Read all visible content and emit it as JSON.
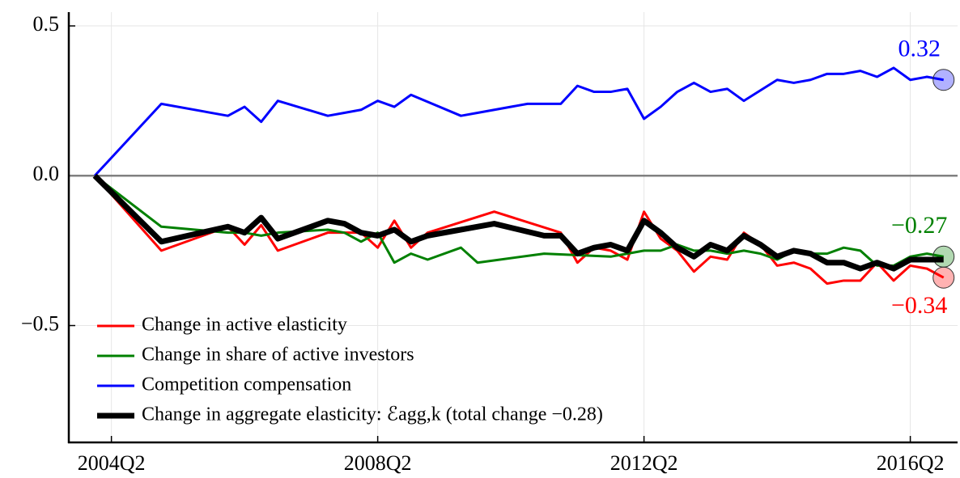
{
  "chart_data": {
    "type": "line",
    "xlim": [
      2003.61,
      2016.96
    ],
    "ylim": [
      -0.89,
      0.546
    ],
    "xticks": [
      {
        "value": 2004.25,
        "label": "2004Q2"
      },
      {
        "value": 2008.25,
        "label": "2008Q2"
      },
      {
        "value": 2012.25,
        "label": "2012Q2"
      },
      {
        "value": 2016.25,
        "label": "2016Q2"
      }
    ],
    "yticks": [
      {
        "value": -0.5,
        "label": "−0.5"
      },
      {
        "value": 0,
        "label": "0.0"
      },
      0.5
    ],
    "grid": true,
    "hline": 0,
    "hline_color": "#808080",
    "legend": "bottom left",
    "series": [
      {
        "name": "Change in active elasticity",
        "color": "#ff0000",
        "width": 3,
        "end_label": "−0.34",
        "end_label_position": "below",
        "x": [
          2004,
          2005,
          2006,
          2006.25,
          2006.5,
          2006.75,
          2007.5,
          2008,
          2008.25,
          2008.5,
          2008.75,
          2009,
          2010,
          2011,
          2011.25,
          2011.5,
          2011.75,
          2012,
          2012.25,
          2012.5,
          2012.75,
          2013,
          2013.25,
          2013.5,
          2013.75,
          2014,
          2014.25,
          2014.5,
          2014.75,
          2015,
          2015.25,
          2015.5,
          2015.75,
          2016,
          2016.25,
          2016.5,
          2016.75
        ],
        "values": [
          0,
          -0.25,
          -0.17,
          -0.23,
          -0.165,
          -0.25,
          -0.19,
          -0.19,
          -0.24,
          -0.15,
          -0.24,
          -0.19,
          -0.12,
          -0.19,
          -0.29,
          -0.24,
          -0.25,
          -0.28,
          -0.12,
          -0.21,
          -0.25,
          -0.32,
          -0.27,
          -0.28,
          -0.19,
          -0.23,
          -0.3,
          -0.29,
          -0.31,
          -0.36,
          -0.35,
          -0.35,
          -0.29,
          -0.35,
          -0.3,
          -0.31,
          -0.34
        ]
      },
      {
        "name": "Change in share of active investors",
        "color": "#008000",
        "width": 3,
        "end_label": "−0.27",
        "end_label_position": "above",
        "x": [
          2004,
          2005,
          2006,
          2006.25,
          2006.5,
          2006.75,
          2007.5,
          2007.75,
          2008,
          2008.25,
          2008.5,
          2008.75,
          2009,
          2009.5,
          2009.75,
          2010.75,
          2011.75,
          2012,
          2012.25,
          2012.5,
          2012.75,
          2013,
          2013.25,
          2013.5,
          2013.75,
          2014,
          2014.25,
          2014.5,
          2014.75,
          2015,
          2015.25,
          2015.5,
          2015.75,
          2016,
          2016.25,
          2016.5,
          2016.75
        ],
        "values": [
          0,
          -0.17,
          -0.19,
          -0.19,
          -0.2,
          -0.19,
          -0.18,
          -0.19,
          -0.22,
          -0.19,
          -0.29,
          -0.26,
          -0.28,
          -0.24,
          -0.29,
          -0.26,
          -0.27,
          -0.26,
          -0.25,
          -0.25,
          -0.23,
          -0.25,
          -0.25,
          -0.26,
          -0.25,
          -0.26,
          -0.28,
          -0.25,
          -0.26,
          -0.26,
          -0.24,
          -0.25,
          -0.3,
          -0.3,
          -0.27,
          -0.26,
          -0.27
        ]
      },
      {
        "name": "Competition compensation",
        "color": "#0000ff",
        "width": 3,
        "end_label": "0.32",
        "end_label_position": "above",
        "x": [
          2004,
          2005,
          2006,
          2006.25,
          2006.5,
          2006.75,
          2007.5,
          2007.75,
          2008,
          2008.25,
          2008.5,
          2008.75,
          2009.5,
          2009.75,
          2010.5,
          2011,
          2011.25,
          2011.5,
          2011.75,
          2012,
          2012.25,
          2012.5,
          2012.75,
          2013,
          2013.25,
          2013.5,
          2013.75,
          2014.25,
          2014.5,
          2014.75,
          2015,
          2015.25,
          2015.5,
          2015.75,
          2016,
          2016.25,
          2016.5,
          2016.75
        ],
        "values": [
          0,
          0.24,
          0.2,
          0.23,
          0.18,
          0.25,
          0.2,
          0.21,
          0.22,
          0.25,
          0.23,
          0.27,
          0.2,
          0.21,
          0.24,
          0.24,
          0.3,
          0.28,
          0.28,
          0.29,
          0.19,
          0.23,
          0.28,
          0.31,
          0.28,
          0.29,
          0.25,
          0.32,
          0.31,
          0.32,
          0.34,
          0.34,
          0.35,
          0.33,
          0.36,
          0.32,
          0.33,
          0.32
        ]
      },
      {
        "name": "Change in aggregate elasticity: ℰagg,k (total change −0.28)",
        "color": "#000000",
        "width": 7,
        "x": [
          2004,
          2005,
          2006,
          2006.25,
          2006.5,
          2006.75,
          2007.5,
          2007.75,
          2008,
          2008.25,
          2008.5,
          2008.75,
          2009,
          2010,
          2010.75,
          2011,
          2011.25,
          2011.5,
          2011.75,
          2012,
          2012.25,
          2012.5,
          2012.75,
          2013,
          2013.25,
          2013.5,
          2013.75,
          2014,
          2014.25,
          2014.5,
          2014.75,
          2015,
          2015.25,
          2015.5,
          2015.75,
          2016,
          2016.25,
          2016.5,
          2016.75
        ],
        "values": [
          0,
          -0.22,
          -0.17,
          -0.19,
          -0.14,
          -0.21,
          -0.15,
          -0.16,
          -0.19,
          -0.2,
          -0.18,
          -0.22,
          -0.2,
          -0.16,
          -0.2,
          -0.2,
          -0.26,
          -0.24,
          -0.23,
          -0.25,
          -0.15,
          -0.19,
          -0.24,
          -0.27,
          -0.23,
          -0.25,
          -0.2,
          -0.23,
          -0.27,
          -0.25,
          -0.26,
          -0.29,
          -0.29,
          -0.31,
          -0.29,
          -0.31,
          -0.28,
          -0.28,
          -0.28
        ]
      }
    ]
  }
}
